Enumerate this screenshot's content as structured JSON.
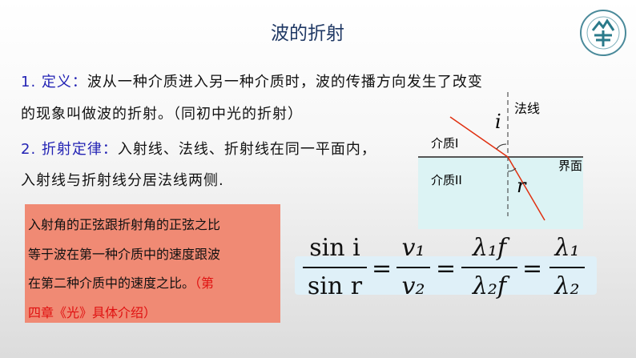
{
  "title": "波的折射",
  "definition": {
    "label": "1. 定义：",
    "text1": "波从一种介质进入另一种介质时，波的传播方向发生了改变",
    "text2": "的现象叫做波的折射。（同初中光的折射）"
  },
  "law": {
    "label": "2. 折射定律：",
    "text1": "入射线、法线、折射线在同一平面内，",
    "text2": "入射线与折射线分居法线两侧."
  },
  "diagram": {
    "normal": "法线",
    "i": "i",
    "medium1": "介质I",
    "interface": "界面",
    "medium2": "介质II",
    "r": "r"
  },
  "box": {
    "line1": "入射角的正弦跟折射角的正弦之比",
    "line2": "等于波在第一种介质中的速度跟波",
    "line3a": "在第二种介质中的速度之比。",
    "line3b": "（第",
    "line4": "四章《光》具体介绍）"
  },
  "formula": {
    "f1n": "sin i",
    "f1d": "sin r",
    "f2n": "v₁",
    "f2d": "v₂",
    "f3n": "λ₁f",
    "f3d": "λ₂f",
    "f4n": "λ₁",
    "f4d": "λ₂",
    "eq": "="
  },
  "colors": {
    "title": "#1f3864",
    "label": "#2323b4",
    "box": "#f08a74",
    "note": "#e01010",
    "ray": "#e03010"
  }
}
